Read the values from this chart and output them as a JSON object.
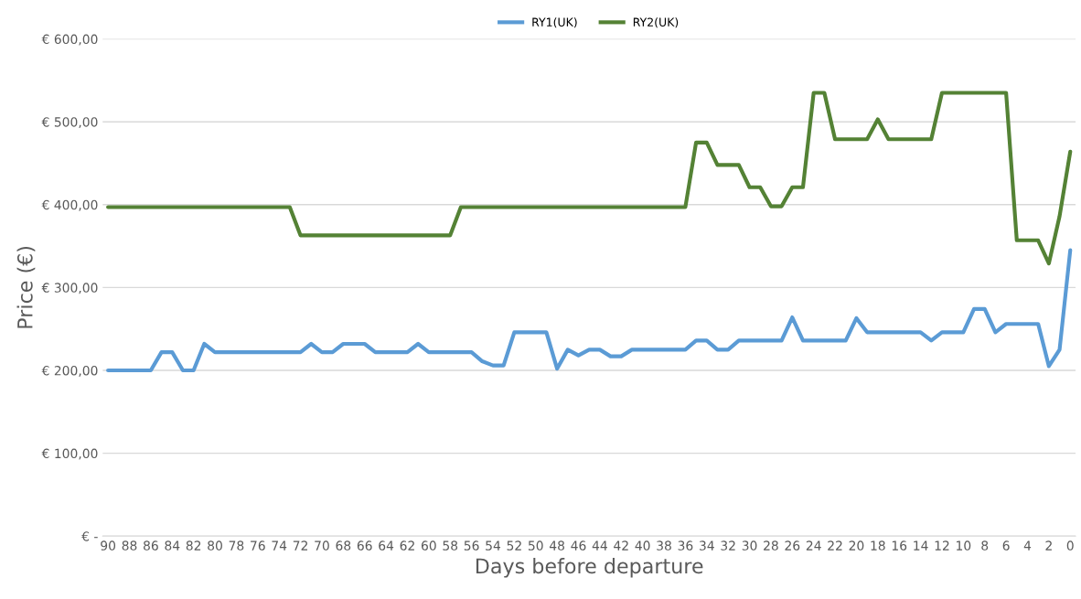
{
  "chart_data": {
    "type": "line",
    "xlabel": "Days before departure",
    "ylabel": "Price (€)",
    "categories": [
      "90",
      null,
      "88",
      null,
      "86",
      null,
      "84",
      null,
      "82",
      null,
      "80",
      null,
      "78",
      null,
      "76",
      null,
      "74",
      null,
      "72",
      null,
      "70",
      null,
      "68",
      null,
      "66",
      null,
      "64",
      null,
      "62",
      null,
      "60",
      null,
      "58",
      null,
      "56",
      null,
      "54",
      null,
      "52",
      null,
      "50",
      null,
      "48",
      null,
      "46",
      null,
      "44",
      null,
      "42",
      null,
      "40",
      null,
      "38",
      null,
      "36",
      null,
      "34",
      null,
      "32",
      null,
      "30",
      null,
      "28",
      null,
      "26",
      null,
      "24",
      null,
      "22",
      null,
      "20",
      null,
      "18",
      null,
      "16",
      null,
      "14",
      null,
      "12",
      null,
      "10",
      null,
      "8",
      null,
      "6",
      null,
      "4",
      null,
      "2",
      null,
      "0"
    ],
    "series": [
      {
        "name": "RY1(UK)",
        "color": "#5b9bd5",
        "values": [
          200,
          200,
          200,
          200,
          200,
          222,
          222,
          200,
          200,
          232,
          222,
          222,
          222,
          222,
          222,
          222,
          222,
          222,
          222,
          232,
          222,
          222,
          232,
          232,
          232,
          222,
          222,
          222,
          222,
          232,
          222,
          222,
          222,
          222,
          222,
          211,
          206,
          206,
          246,
          246,
          246,
          246,
          202,
          225,
          218,
          225,
          225,
          217,
          217,
          225,
          225,
          225,
          225,
          225,
          225,
          236,
          236,
          225,
          225,
          236,
          236,
          236,
          236,
          236,
          264,
          236,
          236,
          236,
          236,
          236,
          263,
          246,
          246,
          246,
          246,
          246,
          246,
          236,
          246,
          246,
          246,
          274,
          274,
          246,
          256,
          256,
          256,
          256,
          205,
          225,
          345
        ]
      },
      {
        "name": "RY2(UK)",
        "color": "#548235",
        "values": [
          397,
          397,
          397,
          397,
          397,
          397,
          397,
          397,
          397,
          397,
          397,
          397,
          397,
          397,
          397,
          397,
          397,
          397,
          363,
          363,
          363,
          363,
          363,
          363,
          363,
          363,
          363,
          363,
          363,
          363,
          363,
          363,
          363,
          397,
          397,
          397,
          397,
          397,
          397,
          397,
          397,
          397,
          397,
          397,
          397,
          397,
          397,
          397,
          397,
          397,
          397,
          397,
          397,
          397,
          397,
          475,
          475,
          448,
          448,
          448,
          421,
          421,
          398,
          398,
          421,
          421,
          535,
          535,
          479,
          479,
          479,
          479,
          503,
          479,
          479,
          479,
          479,
          479,
          535,
          535,
          535,
          535,
          535,
          535,
          535,
          357,
          357,
          357,
          329,
          386,
          464
        ]
      }
    ],
    "ylim": [
      0,
      600
    ],
    "yticks": [
      {
        "value": 0,
        "label": "€ -"
      },
      {
        "value": 100,
        "label": "€ 100,00"
      },
      {
        "value": 200,
        "label": "€ 200,00"
      },
      {
        "value": 300,
        "label": "€ 300,00"
      },
      {
        "value": 400,
        "label": "€ 400,00"
      },
      {
        "value": 500,
        "label": "€ 500,00"
      },
      {
        "value": 600,
        "label": "€ 600,00"
      }
    ],
    "grid": "y",
    "legend": "top",
    "marker": "none",
    "line_style": "solid"
  }
}
